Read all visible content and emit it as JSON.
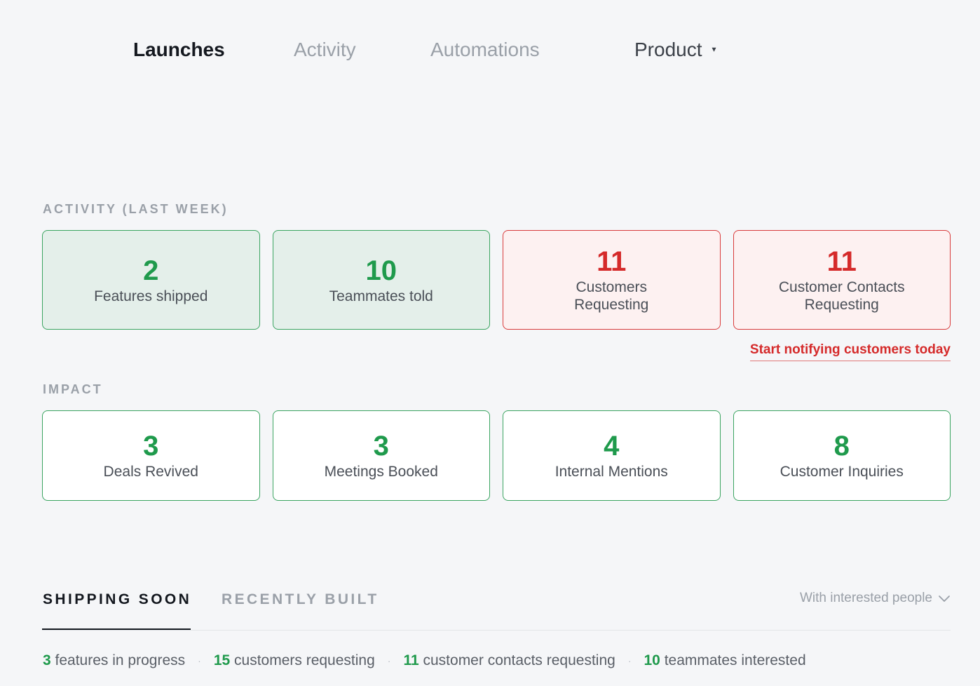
{
  "nav": {
    "launches": "Launches",
    "activity": "Activity",
    "automations": "Automations",
    "product": "Product",
    "product_caret": "▾"
  },
  "activity_section": {
    "label": "ACTIVITY (LAST WEEK)",
    "cards": [
      {
        "value": "2",
        "caption": "Features shipped",
        "status": "green"
      },
      {
        "value": "10",
        "caption": "Teammates told",
        "status": "green"
      },
      {
        "value": "11",
        "caption": "Customers Requesting",
        "status": "red"
      },
      {
        "value": "11",
        "caption": "Customer Contacts Requesting",
        "status": "red"
      }
    ],
    "notify_link": "Start notifying customers today"
  },
  "impact_section": {
    "label": "IMPACT",
    "cards": [
      {
        "value": "3",
        "caption": "Deals Revived"
      },
      {
        "value": "3",
        "caption": "Meetings Booked"
      },
      {
        "value": "4",
        "caption": "Internal Mentions"
      },
      {
        "value": "8",
        "caption": "Customer Inquiries"
      }
    ]
  },
  "tabs": {
    "shipping_soon": "SHIPPING SOON",
    "recently_built": "RECENTLY BUILT",
    "active": "shipping_soon"
  },
  "filter": {
    "selected": "With interested people"
  },
  "stats": [
    {
      "count": "3",
      "text": "features in progress"
    },
    {
      "count": "15",
      "text": "customers requesting"
    },
    {
      "count": "11",
      "text": "customer contacts requesting"
    },
    {
      "count": "10",
      "text": "teammates interested"
    }
  ],
  "colors": {
    "green": "#1f9a4c",
    "red": "#d52a2a",
    "background": "#f5f6f8"
  }
}
